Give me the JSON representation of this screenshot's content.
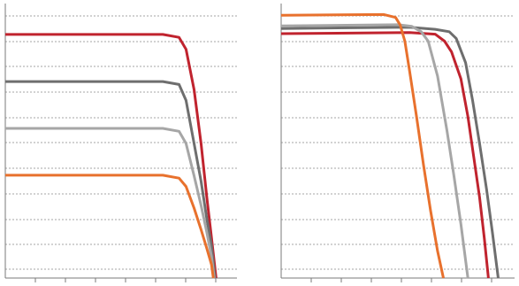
{
  "chart_data": [
    {
      "type": "line",
      "title": "",
      "xlabel": "",
      "ylabel": "",
      "xlim": [
        0,
        100
      ],
      "ylim": [
        0,
        100
      ],
      "grid": true,
      "series": [
        {
          "color": "#c0232e",
          "values": [
            [
              0,
              90.5
            ],
            [
              68,
              90.5
            ],
            [
              75,
              89.4
            ],
            [
              78,
              85
            ],
            [
              81.5,
              70
            ],
            [
              84.5,
              50
            ],
            [
              87,
              30
            ],
            [
              89,
              15
            ],
            [
              91,
              0
            ]
          ]
        },
        {
          "color": "#6e6e6e",
          "values": [
            [
              0,
              73
            ],
            [
              68,
              73
            ],
            [
              75,
              71.9
            ],
            [
              78,
              66
            ],
            [
              81.5,
              50
            ],
            [
              84.5,
              36
            ],
            [
              87,
              22
            ],
            [
              89,
              12
            ],
            [
              90.5,
              0
            ]
          ]
        },
        {
          "color": "#a6a6a6",
          "values": [
            [
              0,
              55.6
            ],
            [
              68,
              55.6
            ],
            [
              75,
              54.5
            ],
            [
              78,
              50
            ],
            [
              81.5,
              38
            ],
            [
              84.5,
              27
            ],
            [
              87,
              17
            ],
            [
              89,
              8
            ],
            [
              90.2,
              0
            ]
          ]
        },
        {
          "color": "#e8712d",
          "values": [
            [
              0,
              38.2
            ],
            [
              68,
              38.2
            ],
            [
              75,
              37.1
            ],
            [
              78,
              34
            ],
            [
              81.5,
              26
            ],
            [
              84.5,
              18
            ],
            [
              87,
              11
            ],
            [
              89,
              5
            ],
            [
              89.8,
              0
            ]
          ]
        }
      ]
    },
    {
      "type": "line",
      "title": "",
      "xlabel": "",
      "ylabel": "",
      "xlim": [
        0,
        100
      ],
      "ylim": [
        0,
        100
      ],
      "grid": true,
      "series": [
        {
          "color": "#c0232e",
          "values": [
            [
              0,
              90.8
            ],
            [
              55,
              91.2
            ],
            [
              66,
              90.6
            ],
            [
              70,
              88
            ],
            [
              73,
              84
            ],
            [
              77,
              74
            ],
            [
              80,
              60
            ],
            [
              82.5,
              45
            ],
            [
              85,
              30
            ],
            [
              87,
              15
            ],
            [
              88.8,
              0
            ]
          ]
        },
        {
          "color": "#6e6e6e",
          "values": [
            [
              0,
              92.7
            ],
            [
              55,
              93.2
            ],
            [
              66,
              92.4
            ],
            [
              72,
              91.5
            ],
            [
              75,
              89
            ],
            [
              79,
              80
            ],
            [
              82,
              66
            ],
            [
              85,
              50
            ],
            [
              88,
              33
            ],
            [
              90.5,
              17
            ],
            [
              93,
              0
            ]
          ]
        },
        {
          "color": "#a6a6a6",
          "values": [
            [
              0,
              93.7
            ],
            [
              50,
              94.1
            ],
            [
              56,
              93.5
            ],
            [
              60,
              91.5
            ],
            [
              63,
              88
            ],
            [
              67,
              75
            ],
            [
              71,
              55
            ],
            [
              74,
              38
            ],
            [
              77,
              20
            ],
            [
              80,
              0
            ]
          ]
        },
        {
          "color": "#e8712d",
          "values": [
            [
              0,
              97.6
            ],
            [
              44,
              97.9
            ],
            [
              49,
              96.8
            ],
            [
              51,
              94
            ],
            [
              53,
              88
            ],
            [
              55,
              77
            ],
            [
              58,
              60
            ],
            [
              61,
              42
            ],
            [
              64,
              25
            ],
            [
              67,
              10
            ],
            [
              69.5,
              0
            ]
          ]
        }
      ]
    }
  ]
}
